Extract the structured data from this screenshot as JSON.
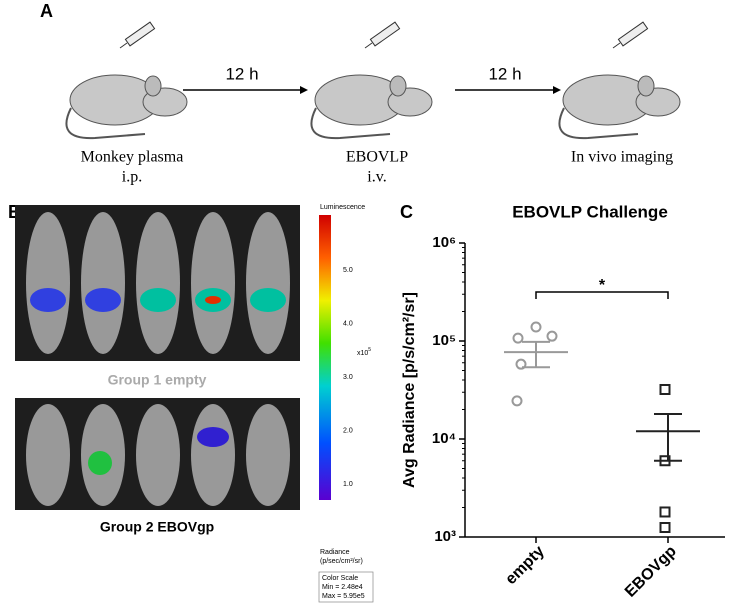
{
  "panel_a": {
    "label": "A",
    "time_labels": [
      "12 h",
      "12 h"
    ],
    "steps": [
      {
        "line1": "Monkey plasma",
        "line2": "i.p."
      },
      {
        "line1": "EBOVLP",
        "line2": "i.v."
      },
      {
        "line1": "In vivo imaging"
      }
    ]
  },
  "panel_b": {
    "label": "B",
    "group1": "Group 1 empty",
    "group2": "Group 2 EBOVgp",
    "colorbar": {
      "title": "Luminescence",
      "tick_labels": [
        "5.0",
        "4.0",
        "3.0",
        "2.0",
        "1.0"
      ],
      "exponent": "x10",
      "exponent_power": "5",
      "unit_title": "Radiance",
      "unit": "(p/sec/cm²/sr)",
      "scale_title": "Color Scale",
      "min": "Min = 2.48e4",
      "max": "Max = 5.95e5"
    }
  },
  "chart_data": {
    "type": "scatter",
    "panel_label": "C",
    "title": "EBOVLP Challenge",
    "y_label": "Avg Radiance [p/s/cm²/sr]",
    "log_y": true,
    "ylim": [
      1000,
      1000000
    ],
    "yticks": [
      {
        "value": 1000,
        "label": "10³"
      },
      {
        "value": 10000,
        "label": "10⁴"
      },
      {
        "value": 100000,
        "label": "10⁵"
      },
      {
        "value": 1000000,
        "label": "10⁶"
      }
    ],
    "categories": [
      "empty",
      "EBOVgp"
    ],
    "series": [
      {
        "marker": "circle",
        "color": "#999999",
        "values": [
          139000,
          112000,
          107000,
          58000,
          24500
        ],
        "mean": 77000,
        "upper": 98000,
        "lower": 54000
      },
      {
        "marker": "square",
        "color": "#222222",
        "values": [
          32000,
          6000,
          1800,
          1250
        ],
        "mean": 12000,
        "upper": 18000,
        "lower": 6000
      }
    ],
    "significance": "*"
  }
}
